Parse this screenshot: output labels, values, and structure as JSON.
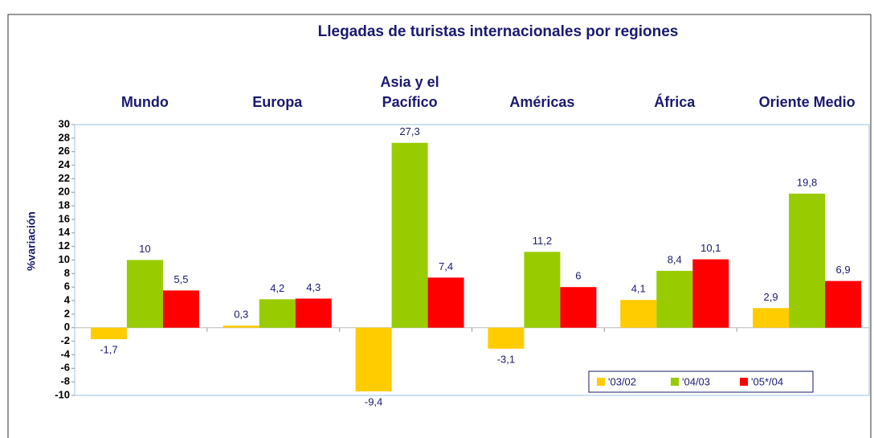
{
  "chart_data": {
    "type": "bar",
    "title": "Llegadas de turistas internacionales por regiones",
    "y_label": "%variación",
    "categories": [
      "Mundo",
      "Europa",
      "Asia y el Pacífico",
      "Américas",
      "África",
      "Oriente Medio"
    ],
    "series": [
      {
        "name": "'03/02",
        "color": "#ffcc00",
        "values": [
          -1.7,
          0.3,
          -9.4,
          -3.1,
          4.1,
          2.9
        ],
        "value_labels": [
          "-1,7",
          "0,3",
          "-9,4",
          "-3,1",
          "4,1",
          "2,9"
        ]
      },
      {
        "name": "'04/03",
        "color": "#99cc00",
        "values": [
          10,
          4.2,
          27.3,
          11.2,
          8.4,
          19.8
        ],
        "value_labels": [
          "10",
          "4,2",
          "27,3",
          "11,2",
          "8,4",
          "19,8"
        ]
      },
      {
        "name": "'05*/04",
        "color": "#ff0000",
        "values": [
          5.5,
          4.3,
          7.4,
          6,
          10.1,
          6.9
        ],
        "value_labels": [
          "5,5",
          "4,3",
          "7,4",
          "6",
          "10,1",
          "6,9"
        ]
      }
    ],
    "ylim": [
      -10,
      30
    ],
    "yticks": [
      -10,
      -8,
      -6,
      -4,
      -2,
      0,
      2,
      4,
      6,
      8,
      10,
      12,
      14,
      16,
      18,
      20,
      22,
      24,
      26,
      28,
      30
    ],
    "grid": false,
    "legend": "lower right"
  }
}
